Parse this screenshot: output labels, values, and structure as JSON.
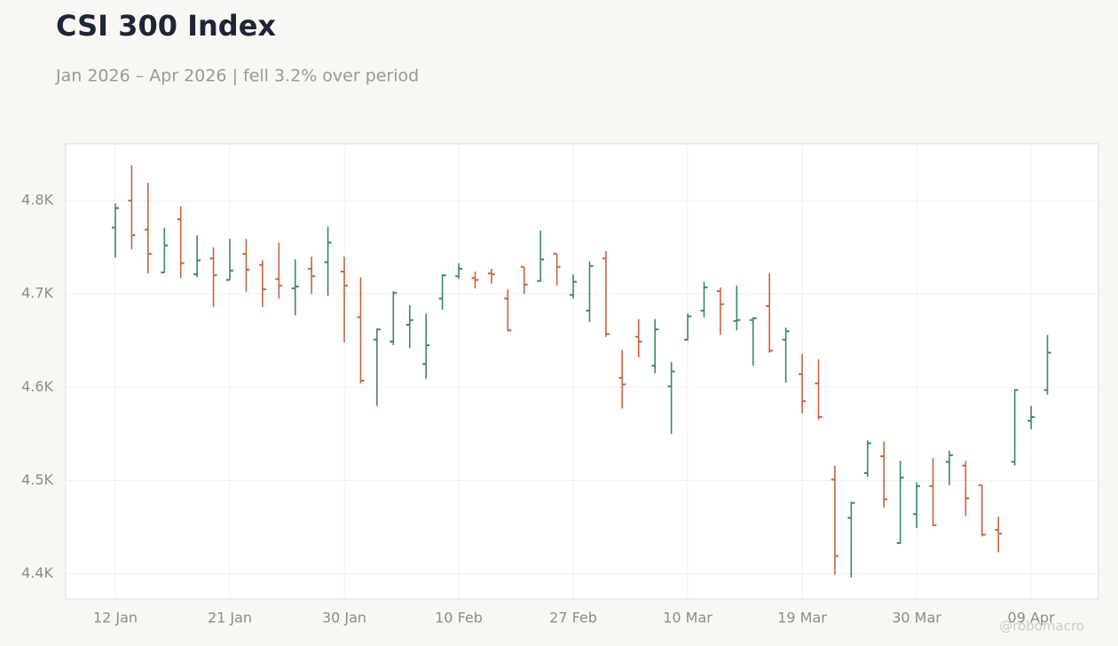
{
  "chart_data": {
    "type": "ohlc",
    "title": "CSI 300 Index",
    "subtitle": "Jan 2026 – Apr 2026 | fell 3.2% over period",
    "watermark": "@robomacro",
    "categories": [
      "12 Jan",
      null,
      null,
      null,
      null,
      null,
      null,
      "21 Jan",
      null,
      null,
      null,
      null,
      null,
      null,
      "30 Jan",
      null,
      null,
      null,
      null,
      null,
      null,
      "10 Feb",
      null,
      null,
      null,
      null,
      null,
      null,
      "27 Feb",
      null,
      null,
      null,
      null,
      null,
      null,
      "10 Mar",
      null,
      null,
      null,
      null,
      null,
      null,
      "19 Mar",
      null,
      null,
      null,
      null,
      null,
      null,
      "30 Mar",
      null,
      null,
      null,
      null,
      null,
      null,
      "09 Apr",
      null
    ],
    "open": [
      4771,
      4800,
      4769,
      4723,
      4780,
      4721,
      4738,
      4715,
      4743,
      4731,
      4716,
      4706,
      4727,
      4734,
      4724,
      4675,
      4651,
      4649,
      4667,
      4625,
      4695,
      4719,
      4717,
      4722,
      4695,
      4729,
      4714,
      4743,
      4699,
      4682,
      4738,
      4610,
      4654,
      4623,
      4601,
      4651,
      4682,
      4703,
      4671,
      4672,
      4687,
      4651,
      4614,
      4604,
      4501,
      4460,
      4508,
      4526,
      4433,
      4464,
      4494,
      4520,
      4516,
      4495,
      4447,
      4520,
      4564,
      4597
    ],
    "high": [
      4797,
      4838,
      4819,
      4771,
      4794,
      4763,
      4750,
      4759,
      4759,
      4736,
      4755,
      4737,
      4740,
      4772,
      4740,
      4718,
      4663,
      4703,
      4688,
      4679,
      4721,
      4733,
      4724,
      4727,
      4705,
      4729,
      4768,
      4743,
      4721,
      4735,
      4746,
      4640,
      4673,
      4673,
      4627,
      4679,
      4713,
      4707,
      4709,
      4675,
      4722,
      4664,
      4636,
      4630,
      4516,
      4477,
      4543,
      4542,
      4521,
      4498,
      4524,
      4532,
      4521,
      4495,
      4461,
      4598,
      4580,
      4656
    ],
    "low": [
      4739,
      4748,
      4722,
      4723,
      4717,
      4718,
      4686,
      4715,
      4702,
      4686,
      4695,
      4677,
      4700,
      4698,
      4648,
      4604,
      4580,
      4645,
      4642,
      4609,
      4683,
      4716,
      4706,
      4711,
      4660,
      4700,
      4713,
      4709,
      4695,
      4670,
      4654,
      4577,
      4632,
      4615,
      4550,
      4650,
      4675,
      4656,
      4661,
      4623,
      4637,
      4605,
      4572,
      4565,
      4399,
      4396,
      4504,
      4471,
      4432,
      4449,
      4451,
      4495,
      4462,
      4440,
      4423,
      4516,
      4555,
      4592
    ],
    "close": [
      4792,
      4763,
      4743,
      4752,
      4733,
      4736,
      4720,
      4725,
      4726,
      4705,
      4709,
      4708,
      4719,
      4755,
      4709,
      4607,
      4662,
      4701,
      4672,
      4645,
      4720,
      4727,
      4715,
      4721,
      4661,
      4710,
      4737,
      4729,
      4713,
      4730,
      4657,
      4603,
      4649,
      4662,
      4617,
      4676,
      4707,
      4689,
      4672,
      4674,
      4639,
      4660,
      4585,
      4568,
      4419,
      4476,
      4540,
      4480,
      4503,
      4494,
      4452,
      4527,
      4481,
      4442,
      4443,
      4597,
      4568,
      4637
    ],
    "up_color": "#3a8a5c",
    "down_color": "#c8643c",
    "ylim": [
      4373,
      4861
    ],
    "yticks": [
      {
        "value": 4400,
        "label": "4.4K"
      },
      {
        "value": 4500,
        "label": "4.5K"
      },
      {
        "value": 4600,
        "label": "4.6K"
      },
      {
        "value": 4700,
        "label": "4.7K"
      },
      {
        "value": 4800,
        "label": "4.8K"
      }
    ],
    "grid": true
  }
}
